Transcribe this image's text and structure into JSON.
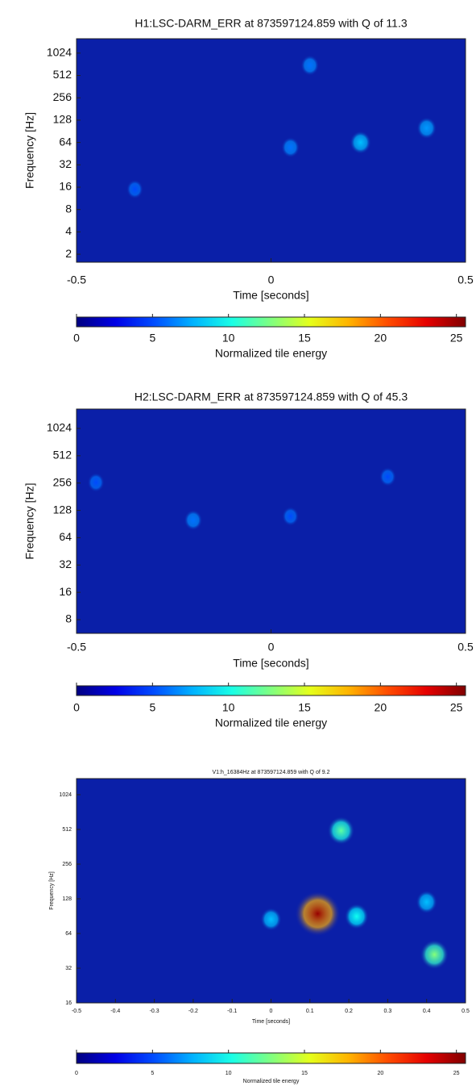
{
  "chart_data": [
    {
      "type": "spectrogram",
      "title": "H1:LSC-DARM_ERR at 873597124.859 with Q of 11.3",
      "xlabel": "Time [seconds]",
      "ylabel": "Frequency [Hz]",
      "colorbar_label": "Normalized tile energy",
      "xlim": [
        -0.5,
        0.5
      ],
      "xticks": [
        -0.5,
        0,
        0.5
      ],
      "ylim": [
        1.56,
        1600
      ],
      "yticks": [
        2,
        4,
        8,
        16,
        32,
        64,
        128,
        256,
        512,
        1024
      ],
      "log_y": true,
      "clim": [
        0,
        25.6
      ],
      "cticks": [
        0,
        5,
        10,
        15,
        20,
        25
      ],
      "colormap": "jet",
      "hotspots": {
        "time": [
          0.23,
          0.4,
          -0.35,
          0.05,
          0.1
        ],
        "frequency": [
          64,
          100,
          15,
          55,
          700
        ],
        "energy": [
          8,
          7,
          5,
          6,
          6
        ]
      }
    },
    {
      "type": "spectrogram",
      "title": "H2:LSC-DARM_ERR at 873597124.859 with Q of 45.3",
      "xlabel": "Time [seconds]",
      "ylabel": "Frequency [Hz]",
      "colorbar_label": "Normalized tile energy",
      "xlim": [
        -0.5,
        0.5
      ],
      "xticks": [
        -0.5,
        0,
        0.5
      ],
      "ylim": [
        5.65,
        1673
      ],
      "yticks": [
        8,
        16,
        32,
        64,
        128,
        256,
        512,
        1024
      ],
      "log_y": true,
      "clim": [
        0,
        25.6
      ],
      "cticks": [
        0,
        5,
        10,
        15,
        20,
        25
      ],
      "colormap": "jet",
      "hotspots": {
        "time": [
          -0.2,
          0.05,
          -0.45,
          0.3
        ],
        "frequency": [
          100,
          110,
          260,
          300
        ],
        "energy": [
          6,
          5,
          5,
          5
        ]
      }
    },
    {
      "type": "spectrogram",
      "title": "V1:h_16384Hz at 873597124.859 with Q of 9.2",
      "xlabel": "Time [seconds]",
      "ylabel": "Frequency [Hz]",
      "colorbar_label": "Normalized tile energy",
      "xlim": [
        -0.5,
        0.5
      ],
      "xticks": [
        -0.5,
        -0.4,
        -0.3,
        -0.2,
        -0.1,
        0,
        0.1,
        0.2,
        0.3,
        0.4,
        0.5
      ],
      "ylim": [
        16,
        1413
      ],
      "yticks": [
        16,
        32,
        64,
        128,
        256,
        512,
        1024
      ],
      "log_y": true,
      "clim": [
        0,
        25.6
      ],
      "cticks": [
        0,
        5,
        10,
        15,
        20,
        25
      ],
      "colormap": "jet",
      "hotspots": {
        "time": [
          0.12,
          0.42,
          0.22,
          0.0,
          0.18,
          0.4
        ],
        "frequency": [
          95,
          42,
          90,
          85,
          500,
          120
        ],
        "energy": [
          25,
          13,
          10,
          8,
          12,
          8
        ]
      }
    }
  ]
}
